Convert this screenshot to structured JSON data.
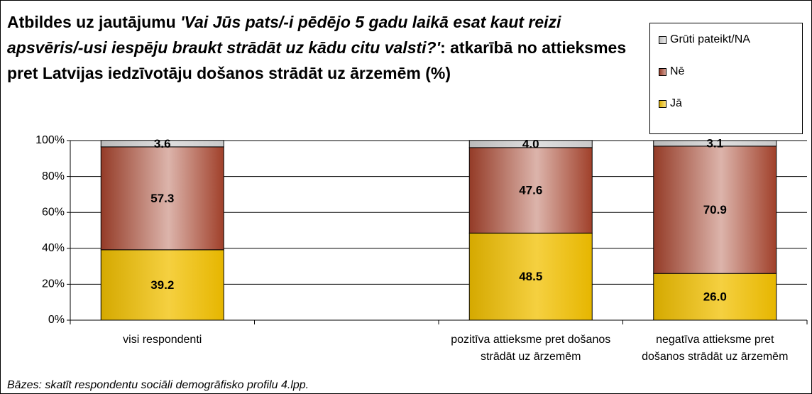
{
  "chart_data": {
    "type": "stacked_bar",
    "title": [
      "Atbildes uz jautājumu ",
      "'Vai Jūs pats/-i pēdējo 5 gadu laikā esat kaut reizi apsvēris/-usi iespēju braukt strādāt uz kādu citu valsti?'",
      ": atkarībā no attieksmes pret Latvijas iedzīvotāju došanos strādāt uz ārzemēm (%)"
    ],
    "categories": [
      "visi respondenti",
      null,
      "pozitīva attieksme pret došanos strādāt uz ārzemēm",
      "negatīva attieksme pret došanos strādāt uz ārzemēm"
    ],
    "series": [
      {
        "name": "Jā",
        "color": "#f2c000",
        "values": [
          39.2,
          null,
          48.5,
          26.0
        ],
        "value_labels": [
          "39.2",
          null,
          "48.5",
          "26.0"
        ]
      },
      {
        "name": "Nē",
        "color": "#a8432c",
        "values": [
          57.3,
          null,
          47.6,
          70.9
        ],
        "value_labels": [
          "57.3",
          null,
          "47.6",
          "70.9"
        ]
      },
      {
        "name": "Grūti pateikt/NA",
        "color": "#d4d4d4",
        "values": [
          3.6,
          null,
          4.0,
          3.1
        ],
        "value_labels": [
          "3.6",
          null,
          "4.0",
          "3.1"
        ]
      }
    ],
    "ylim": [
      0,
      100
    ],
    "yticks": [
      {
        "value": 0,
        "label": "0%"
      },
      {
        "value": 20,
        "label": "20%"
      },
      {
        "value": 40,
        "label": "40%"
      },
      {
        "value": 60,
        "label": "60%"
      },
      {
        "value": 80,
        "label": "80%"
      },
      {
        "value": 100,
        "label": "100%"
      }
    ],
    "grid": true,
    "legend": "top-right",
    "footnote": "Bāzes: skatīt respondentu sociāli demogrāfisko profilu 4.lpp."
  }
}
